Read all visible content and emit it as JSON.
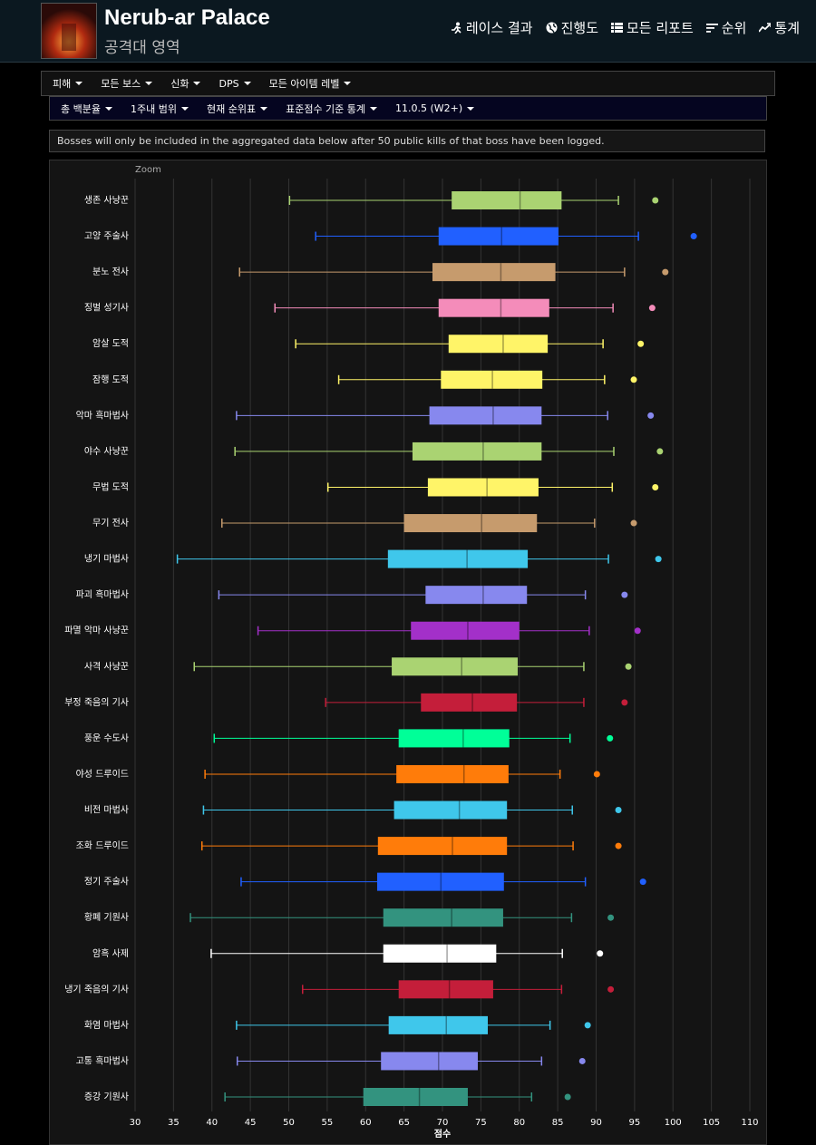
{
  "header": {
    "title": "Nerub-ar Palace",
    "subtitle": "공격대 영역",
    "nav": [
      "레이스 결과",
      "진행도",
      "모든 리포트",
      "순위",
      "통계"
    ]
  },
  "filters_primary": [
    "피해",
    "모든 보스",
    "신화",
    "DPS",
    "모든 아이템 레벨"
  ],
  "filters_secondary": [
    "총 백분율",
    "1주내 범위",
    "현재 순위표",
    "표준점수 기준 통계",
    "11.0.5 (W2+)"
  ],
  "notice": "Bosses will only be included in the aggregated data below after 50 public kills of that boss have been logged.",
  "chart_data": {
    "type": "boxplot",
    "zoom_label": "Zoom",
    "xlabel": "점수",
    "xlim": [
      30,
      110
    ],
    "xticks": [
      30,
      35,
      40,
      45,
      50,
      55,
      60,
      65,
      70,
      75,
      80,
      85,
      90,
      95,
      100,
      105,
      110
    ],
    "grid": true,
    "boxes": [
      {
        "name": "생존 사냥꾼",
        "color": "#aad372",
        "low": 50.1,
        "q1": 71.2,
        "median": 80.1,
        "q3": 85.5,
        "high": 92.9,
        "max": 97.7
      },
      {
        "name": "고양 주술사",
        "color": "#2160ff",
        "low": 53.5,
        "q1": 69.5,
        "median": 77.7,
        "q3": 85.1,
        "high": 95.5,
        "max": 102.7
      },
      {
        "name": "분노 전사",
        "color": "#c69b6d",
        "low": 43.6,
        "q1": 68.7,
        "median": 77.6,
        "q3": 84.7,
        "high": 93.7,
        "max": 99.0
      },
      {
        "name": "징벌 성기사",
        "color": "#f48cba",
        "low": 48.2,
        "q1": 69.5,
        "median": 77.6,
        "q3": 83.9,
        "high": 92.2,
        "max": 97.3
      },
      {
        "name": "암살 도적",
        "color": "#fff468",
        "low": 50.9,
        "q1": 70.8,
        "median": 77.9,
        "q3": 83.7,
        "high": 90.9,
        "max": 95.8
      },
      {
        "name": "잠행 도적",
        "color": "#fff468",
        "low": 56.5,
        "q1": 69.8,
        "median": 76.5,
        "q3": 83.0,
        "high": 91.1,
        "max": 94.9
      },
      {
        "name": "악마 흑마법사",
        "color": "#8788ee",
        "low": 43.2,
        "q1": 68.3,
        "median": 76.6,
        "q3": 82.9,
        "high": 91.5,
        "max": 97.1
      },
      {
        "name": "야수 사냥꾼",
        "color": "#aad372",
        "low": 43.0,
        "q1": 66.1,
        "median": 75.3,
        "q3": 82.9,
        "high": 92.3,
        "max": 98.3
      },
      {
        "name": "무법 도적",
        "color": "#fff468",
        "low": 55.1,
        "q1": 68.1,
        "median": 75.8,
        "q3": 82.5,
        "high": 92.1,
        "max": 97.7
      },
      {
        "name": "무기 전사",
        "color": "#c69b6d",
        "low": 41.3,
        "q1": 65.0,
        "median": 75.1,
        "q3": 82.3,
        "high": 89.8,
        "max": 94.9
      },
      {
        "name": "냉기 마법사",
        "color": "#3fc7eb",
        "low": 35.5,
        "q1": 62.9,
        "median": 73.2,
        "q3": 81.1,
        "high": 91.6,
        "max": 98.1
      },
      {
        "name": "파괴 흑마법사",
        "color": "#8788ee",
        "low": 40.9,
        "q1": 67.8,
        "median": 75.3,
        "q3": 81.0,
        "high": 88.6,
        "max": 93.7
      },
      {
        "name": "파멸 악마 사냥꾼",
        "color": "#a330c9",
        "low": 46.0,
        "q1": 65.9,
        "median": 73.3,
        "q3": 80.0,
        "high": 89.1,
        "max": 95.4
      },
      {
        "name": "사격 사냥꾼",
        "color": "#aad372",
        "low": 37.7,
        "q1": 63.4,
        "median": 72.5,
        "q3": 79.8,
        "high": 88.4,
        "max": 94.2
      },
      {
        "name": "부정 죽음의 기사",
        "color": "#c41e3a",
        "low": 54.8,
        "q1": 67.2,
        "median": 73.9,
        "q3": 79.7,
        "high": 88.4,
        "max": 93.7
      },
      {
        "name": "풍운 수도사",
        "color": "#00ff98",
        "low": 40.3,
        "q1": 64.3,
        "median": 72.7,
        "q3": 78.7,
        "high": 86.6,
        "max": 91.8
      },
      {
        "name": "야성 드루이드",
        "color": "#ff7c0a",
        "low": 39.1,
        "q1": 64.0,
        "median": 72.8,
        "q3": 78.6,
        "high": 85.3,
        "max": 90.1
      },
      {
        "name": "비전 마법사",
        "color": "#3fc7eb",
        "low": 38.9,
        "q1": 63.7,
        "median": 72.2,
        "q3": 78.4,
        "high": 86.9,
        "max": 92.9
      },
      {
        "name": "조화 드루이드",
        "color": "#ff7c0a",
        "low": 38.7,
        "q1": 61.6,
        "median": 71.3,
        "q3": 78.4,
        "high": 87.0,
        "max": 92.9
      },
      {
        "name": "정기 주술사",
        "color": "#2160ff",
        "low": 43.8,
        "q1": 61.5,
        "median": 69.8,
        "q3": 78.0,
        "high": 88.6,
        "max": 96.1
      },
      {
        "name": "황폐 기원사",
        "color": "#33937f",
        "low": 37.2,
        "q1": 62.3,
        "median": 71.2,
        "q3": 77.9,
        "high": 86.8,
        "max": 91.9
      },
      {
        "name": "암흑 사제",
        "color": "#ffffff",
        "low": 39.9,
        "q1": 62.3,
        "median": 70.6,
        "q3": 77.0,
        "high": 85.6,
        "max": 90.5
      },
      {
        "name": "냉기 죽음의 기사",
        "color": "#c41e3a",
        "low": 51.8,
        "q1": 64.3,
        "median": 70.9,
        "q3": 76.6,
        "high": 85.5,
        "max": 91.9
      },
      {
        "name": "화염 마법사",
        "color": "#3fc7eb",
        "low": 43.2,
        "q1": 63.0,
        "median": 70.5,
        "q3": 75.9,
        "high": 84.0,
        "max": 88.9
      },
      {
        "name": "고통 흑마법사",
        "color": "#8788ee",
        "low": 43.3,
        "q1": 62.0,
        "median": 69.5,
        "q3": 74.6,
        "high": 82.9,
        "max": 88.2
      },
      {
        "name": "증강 기원사",
        "color": "#33937f",
        "low": 41.7,
        "q1": 59.7,
        "median": 67.0,
        "q3": 73.3,
        "high": 81.6,
        "max": 86.3
      }
    ]
  }
}
